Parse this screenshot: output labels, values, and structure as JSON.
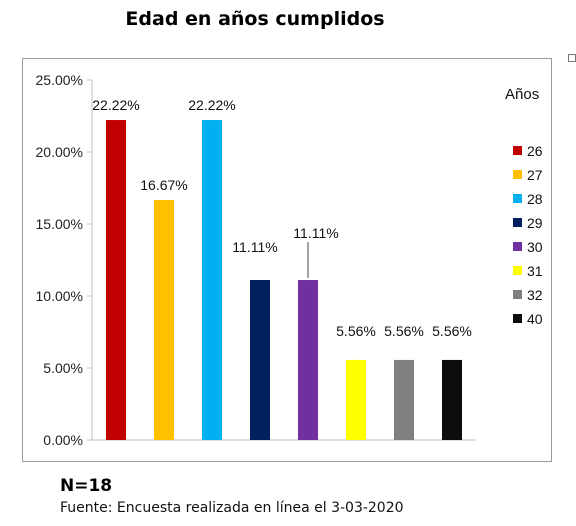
{
  "chart_data": {
    "type": "bar",
    "title": "Edad en años cumplidos",
    "categories": [
      "26",
      "27",
      "28",
      "29",
      "30",
      "31",
      "32",
      "40"
    ],
    "values": [
      22.22,
      16.67,
      22.22,
      11.11,
      11.11,
      5.56,
      5.56,
      5.56
    ],
    "data_labels": [
      "22.22%",
      "16.67%",
      "22.22%",
      "11.11%",
      "11.11%",
      "5.56%",
      "5.56%",
      "5.56%"
    ],
    "colors": [
      "#c00000",
      "#ffc000",
      "#00b0f0",
      "#002060",
      "#7030a0",
      "#ffff00",
      "#808080",
      "#0d0d0d"
    ],
    "ylim": [
      0,
      25
    ],
    "yticks": [
      "0.00%",
      "5.00%",
      "10.00%",
      "15.00%",
      "20.00%",
      "25.00%"
    ],
    "legend_title": "Años",
    "legend_position": "right",
    "grid": false
  },
  "footer": {
    "n": "N=18",
    "source": "Fuente: Encuesta realizada en línea el 3-03-2020"
  }
}
